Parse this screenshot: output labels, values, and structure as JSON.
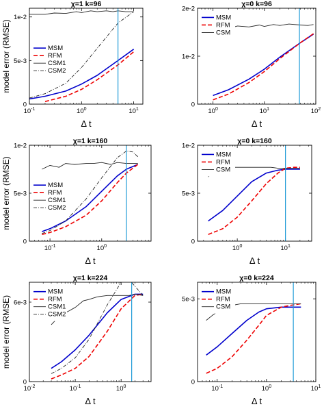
{
  "figure": {
    "ylabel_text": "model error (RMSE)",
    "xlabel_text": "Δ t"
  },
  "chart_data": [
    {
      "type": "line",
      "title": "χ=1 k=96",
      "xlabel": "Δ t",
      "ylabel": "model error (RMSE)",
      "xscale": "log",
      "xlim": [
        0.1,
        15
      ],
      "xticks": [
        0.1,
        1,
        10
      ],
      "xtick_labels": [
        "10^-1",
        "10^0",
        "10^1"
      ],
      "ylim": [
        0,
        0.011
      ],
      "yticks": [
        0,
        0.005,
        0.01
      ],
      "ytick_labels": [
        "0",
        "5e-3",
        "1e-2"
      ],
      "legend_location": "middle-left",
      "vline_x": 5,
      "series": [
        {
          "name": "MSM",
          "color": "#0000cc",
          "style": "solid",
          "width": 1.6,
          "x": [
            0.1,
            0.2,
            0.5,
            1,
            2,
            5,
            10
          ],
          "y": [
            0.0006,
            0.0009,
            0.0015,
            0.0023,
            0.0033,
            0.005,
            0.0063
          ]
        },
        {
          "name": "RFM",
          "color": "#ee0000",
          "style": "dashed",
          "width": 1.6,
          "x": [
            0.2,
            0.5,
            1,
            2,
            5,
            10
          ],
          "y": [
            0.0003,
            0.0009,
            0.0017,
            0.0028,
            0.0045,
            0.006
          ]
        },
        {
          "name": "CSM1",
          "color": "#222222",
          "style": "solid",
          "width": 0.9,
          "x": [
            0.1,
            0.2,
            0.3,
            0.5,
            0.8,
            1,
            1.5,
            2,
            3,
            4,
            5,
            7,
            10
          ],
          "y": [
            0.0103,
            0.0103,
            0.01045,
            0.0104,
            0.0106,
            0.0105,
            0.0107,
            0.0106,
            0.0107,
            0.0106,
            0.0107,
            0.0106,
            0.0106
          ]
        },
        {
          "name": "CSM2",
          "color": "#222222",
          "style": "dashdot",
          "width": 0.9,
          "x": [
            0.1,
            0.2,
            0.5,
            1,
            2,
            5,
            10
          ],
          "y": [
            0.0007,
            0.0012,
            0.0024,
            0.0042,
            0.0064,
            0.0093,
            0.0106
          ]
        }
      ]
    },
    {
      "type": "line",
      "title": "χ=0 k=96",
      "xlabel": "Δ t",
      "ylabel": "",
      "xscale": "log",
      "xlim": [
        0.5,
        100
      ],
      "xticks": [
        1,
        10,
        100
      ],
      "xtick_labels": [
        "10^0",
        "10^1",
        "10^2"
      ],
      "ylim": [
        0,
        0.02
      ],
      "yticks": [
        0,
        0.01,
        0.02
      ],
      "ytick_labels": [
        "0",
        "1e-2",
        "2e-2"
      ],
      "legend_location": "top-left",
      "vline_x": 48,
      "series": [
        {
          "name": "MSM",
          "color": "#0000cc",
          "style": "solid",
          "width": 1.6,
          "x": [
            1,
            2,
            5,
            10,
            20,
            50,
            90
          ],
          "y": [
            0.0018,
            0.003,
            0.0052,
            0.0073,
            0.0098,
            0.0128,
            0.0146
          ]
        },
        {
          "name": "RFM",
          "color": "#ee0000",
          "style": "dashed",
          "width": 1.6,
          "x": [
            1,
            2,
            5,
            10,
            20,
            50,
            90
          ],
          "y": [
            0.0009,
            0.0021,
            0.0045,
            0.0068,
            0.0095,
            0.0128,
            0.0147
          ]
        },
        {
          "name": "CSM",
          "color": "#222222",
          "style": "solid",
          "width": 0.9,
          "x": [
            1,
            1.5,
            2,
            3,
            5,
            8,
            10,
            15,
            20,
            30,
            50,
            70,
            90
          ],
          "y": [
            0.0155,
            0.016,
            0.0158,
            0.0163,
            0.0161,
            0.0165,
            0.0162,
            0.0166,
            0.0164,
            0.0167,
            0.0165,
            0.0164,
            0.0166
          ]
        }
      ]
    },
    {
      "type": "line",
      "title": "χ=1 k=160",
      "xlabel": "Δ t",
      "ylabel": "model error (RMSE)",
      "xscale": "log",
      "xlim": [
        0.04,
        9
      ],
      "xticks": [
        0.1,
        1
      ],
      "xtick_labels": [
        "10^-1",
        "10^0"
      ],
      "ylim": [
        0,
        0.01
      ],
      "yticks": [
        0,
        0.005,
        0.01
      ],
      "ytick_labels": [
        "0",
        "5e-3",
        "1e-2"
      ],
      "legend_location": "middle-left",
      "vline_x": 3,
      "series": [
        {
          "name": "MSM",
          "color": "#0000cc",
          "style": "solid",
          "width": 1.6,
          "x": [
            0.07,
            0.1,
            0.2,
            0.5,
            1,
            2,
            3,
            5
          ],
          "y": [
            0.001,
            0.0013,
            0.0021,
            0.0036,
            0.0052,
            0.0068,
            0.0075,
            0.008
          ]
        },
        {
          "name": "RFM",
          "color": "#ee0000",
          "style": "dashed",
          "width": 1.6,
          "x": [
            0.07,
            0.1,
            0.2,
            0.5,
            1,
            2,
            3,
            5
          ],
          "y": [
            0.0007,
            0.0009,
            0.0015,
            0.0027,
            0.0042,
            0.0061,
            0.0071,
            0.008
          ]
        },
        {
          "name": "CSM1",
          "color": "#222222",
          "style": "solid",
          "width": 0.9,
          "x": [
            0.07,
            0.1,
            0.15,
            0.2,
            0.3,
            0.5,
            0.7,
            1,
            1.5,
            2,
            3,
            4,
            5
          ],
          "y": [
            0.0075,
            0.0079,
            0.0077,
            0.0081,
            0.008,
            0.0081,
            0.0081,
            0.0082,
            0.008,
            0.0082,
            0.0081,
            0.0081,
            0.0081
          ]
        },
        {
          "name": "CSM2",
          "color": "#222222",
          "style": "dashdot",
          "width": 0.9,
          "x": [
            0.07,
            0.1,
            0.2,
            0.5,
            1,
            2,
            3,
            4,
            5
          ],
          "y": [
            0.0008,
            0.0011,
            0.0021,
            0.0044,
            0.0066,
            0.0087,
            0.0094,
            0.0093,
            0.0088
          ]
        }
      ]
    },
    {
      "type": "line",
      "title": "χ=0 k=160",
      "xlabel": "Δ t",
      "ylabel": "",
      "xscale": "log",
      "xlim": [
        0.15,
        35
      ],
      "xticks": [
        1,
        10
      ],
      "xtick_labels": [
        "10^0",
        "10^1"
      ],
      "ylim": [
        0,
        0.01
      ],
      "yticks": [
        0,
        0.005,
        0.01
      ],
      "ytick_labels": [
        "0",
        "5e-3",
        "1e-2"
      ],
      "legend_location": "top-left",
      "vline_x": 10,
      "series": [
        {
          "name": "MSM",
          "color": "#0000cc",
          "style": "solid",
          "width": 1.6,
          "x": [
            0.25,
            0.5,
            1,
            2,
            4,
            7,
            10,
            15,
            20
          ],
          "y": [
            0.0021,
            0.0032,
            0.0047,
            0.0062,
            0.0071,
            0.0074,
            0.0075,
            0.0075,
            0.0075
          ]
        },
        {
          "name": "RFM",
          "color": "#ee0000",
          "style": "dashed",
          "width": 1.6,
          "x": [
            0.25,
            0.5,
            1,
            2,
            4,
            7,
            10,
            15,
            20
          ],
          "y": [
            0.0007,
            0.0013,
            0.0025,
            0.0042,
            0.006,
            0.0071,
            0.0076,
            0.0077,
            0.0077
          ]
        },
        {
          "name": "CSM",
          "color": "#222222",
          "style": "solid",
          "width": 0.9,
          "x": [
            0.25,
            0.35,
            0.5,
            0.7,
            1,
            1.5,
            2,
            3,
            5,
            7,
            10,
            15,
            20
          ],
          "y": [
            0.0067,
            0.0073,
            0.0076,
            0.0077,
            0.0077,
            0.0077,
            0.0077,
            0.0077,
            0.0077,
            0.0076,
            0.0076,
            0.0076,
            0.0076
          ]
        }
      ]
    },
    {
      "type": "line",
      "title": "χ=1 k=224",
      "xlabel": "Δ t",
      "ylabel": "model error (RMSE)",
      "xscale": "log",
      "xlim": [
        0.01,
        4.5
      ],
      "xticks": [
        0.01,
        0.1,
        1
      ],
      "xtick_labels": [
        "10^-2",
        "10^-1",
        "10^0"
      ],
      "ylim": [
        0,
        0.0075
      ],
      "yticks": [
        0,
        0.006
      ],
      "ytick_labels": [
        "0",
        "6e-3"
      ],
      "legend_location": "top-left",
      "vline_x": 1.7,
      "series": [
        {
          "name": "MSM",
          "color": "#0000cc",
          "style": "solid",
          "width": 1.6,
          "x": [
            0.03,
            0.05,
            0.1,
            0.2,
            0.5,
            1,
            2,
            3
          ],
          "y": [
            0.001,
            0.0015,
            0.0024,
            0.0035,
            0.0052,
            0.0062,
            0.0066,
            0.0066
          ]
        },
        {
          "name": "RFM",
          "color": "#ee0000",
          "style": "dashed",
          "width": 1.6,
          "x": [
            0.03,
            0.05,
            0.1,
            0.2,
            0.5,
            1,
            2,
            3
          ],
          "y": [
            0.0002,
            0.0005,
            0.001,
            0.0019,
            0.0038,
            0.0055,
            0.0065,
            0.0066
          ]
        },
        {
          "name": "CSM1",
          "color": "#222222",
          "style": "solid",
          "width": 0.9,
          "x": [
            0.03,
            0.05,
            0.07,
            0.1,
            0.15,
            0.2,
            0.3,
            0.5,
            0.7,
            1,
            1.5,
            2,
            3
          ],
          "y": [
            0.0043,
            0.0051,
            0.0053,
            0.0056,
            0.0061,
            0.0062,
            0.0064,
            0.0065,
            0.0065,
            0.0065,
            0.0065,
            0.0066,
            0.0065
          ]
        },
        {
          "name": "CSM2",
          "color": "#222222",
          "style": "dashdot",
          "width": 0.9,
          "x": [
            0.03,
            0.05,
            0.1,
            0.2,
            0.5,
            1,
            1.5,
            2,
            3
          ],
          "y": [
            0.0006,
            0.001,
            0.0018,
            0.0032,
            0.0058,
            0.0075,
            0.0077,
            0.0072,
            0.0065
          ]
        }
      ]
    },
    {
      "type": "line",
      "title": "χ=0 k=224",
      "xlabel": "Δ t",
      "ylabel": "",
      "xscale": "log",
      "xlim": [
        0.04,
        10
      ],
      "xticks": [
        0.1,
        1,
        10
      ],
      "xtick_labels": [
        "10^-1",
        "10^0",
        "10^1"
      ],
      "ylim": [
        0,
        0.006
      ],
      "yticks": [
        0,
        0.005
      ],
      "ytick_labels": [
        "0",
        "5e-3"
      ],
      "legend_location": "top-left",
      "vline_x": 3.5,
      "series": [
        {
          "name": "MSM",
          "color": "#0000cc",
          "style": "solid",
          "width": 1.6,
          "x": [
            0.06,
            0.1,
            0.2,
            0.4,
            0.7,
            1,
            2,
            3,
            5
          ],
          "y": [
            0.0016,
            0.0021,
            0.0029,
            0.0037,
            0.0042,
            0.0044,
            0.0045,
            0.0045,
            0.0045
          ]
        },
        {
          "name": "RFM",
          "color": "#ee0000",
          "style": "dashed",
          "width": 1.6,
          "x": [
            0.06,
            0.1,
            0.2,
            0.4,
            0.7,
            1,
            2,
            3,
            5
          ],
          "y": [
            0.0005,
            0.0008,
            0.0015,
            0.0025,
            0.0034,
            0.004,
            0.0045,
            0.0046,
            0.0047
          ]
        },
        {
          "name": "CSM",
          "color": "#222222",
          "style": "solid",
          "width": 0.9,
          "x": [
            0.06,
            0.08,
            0.1,
            0.15,
            0.2,
            0.3,
            0.5,
            0.7,
            1,
            2,
            3,
            5
          ],
          "y": [
            0.0037,
            0.004,
            0.0042,
            0.0045,
            0.0046,
            0.0047,
            0.0047,
            0.0047,
            0.0047,
            0.0047,
            0.0047,
            0.0047
          ]
        }
      ]
    }
  ]
}
